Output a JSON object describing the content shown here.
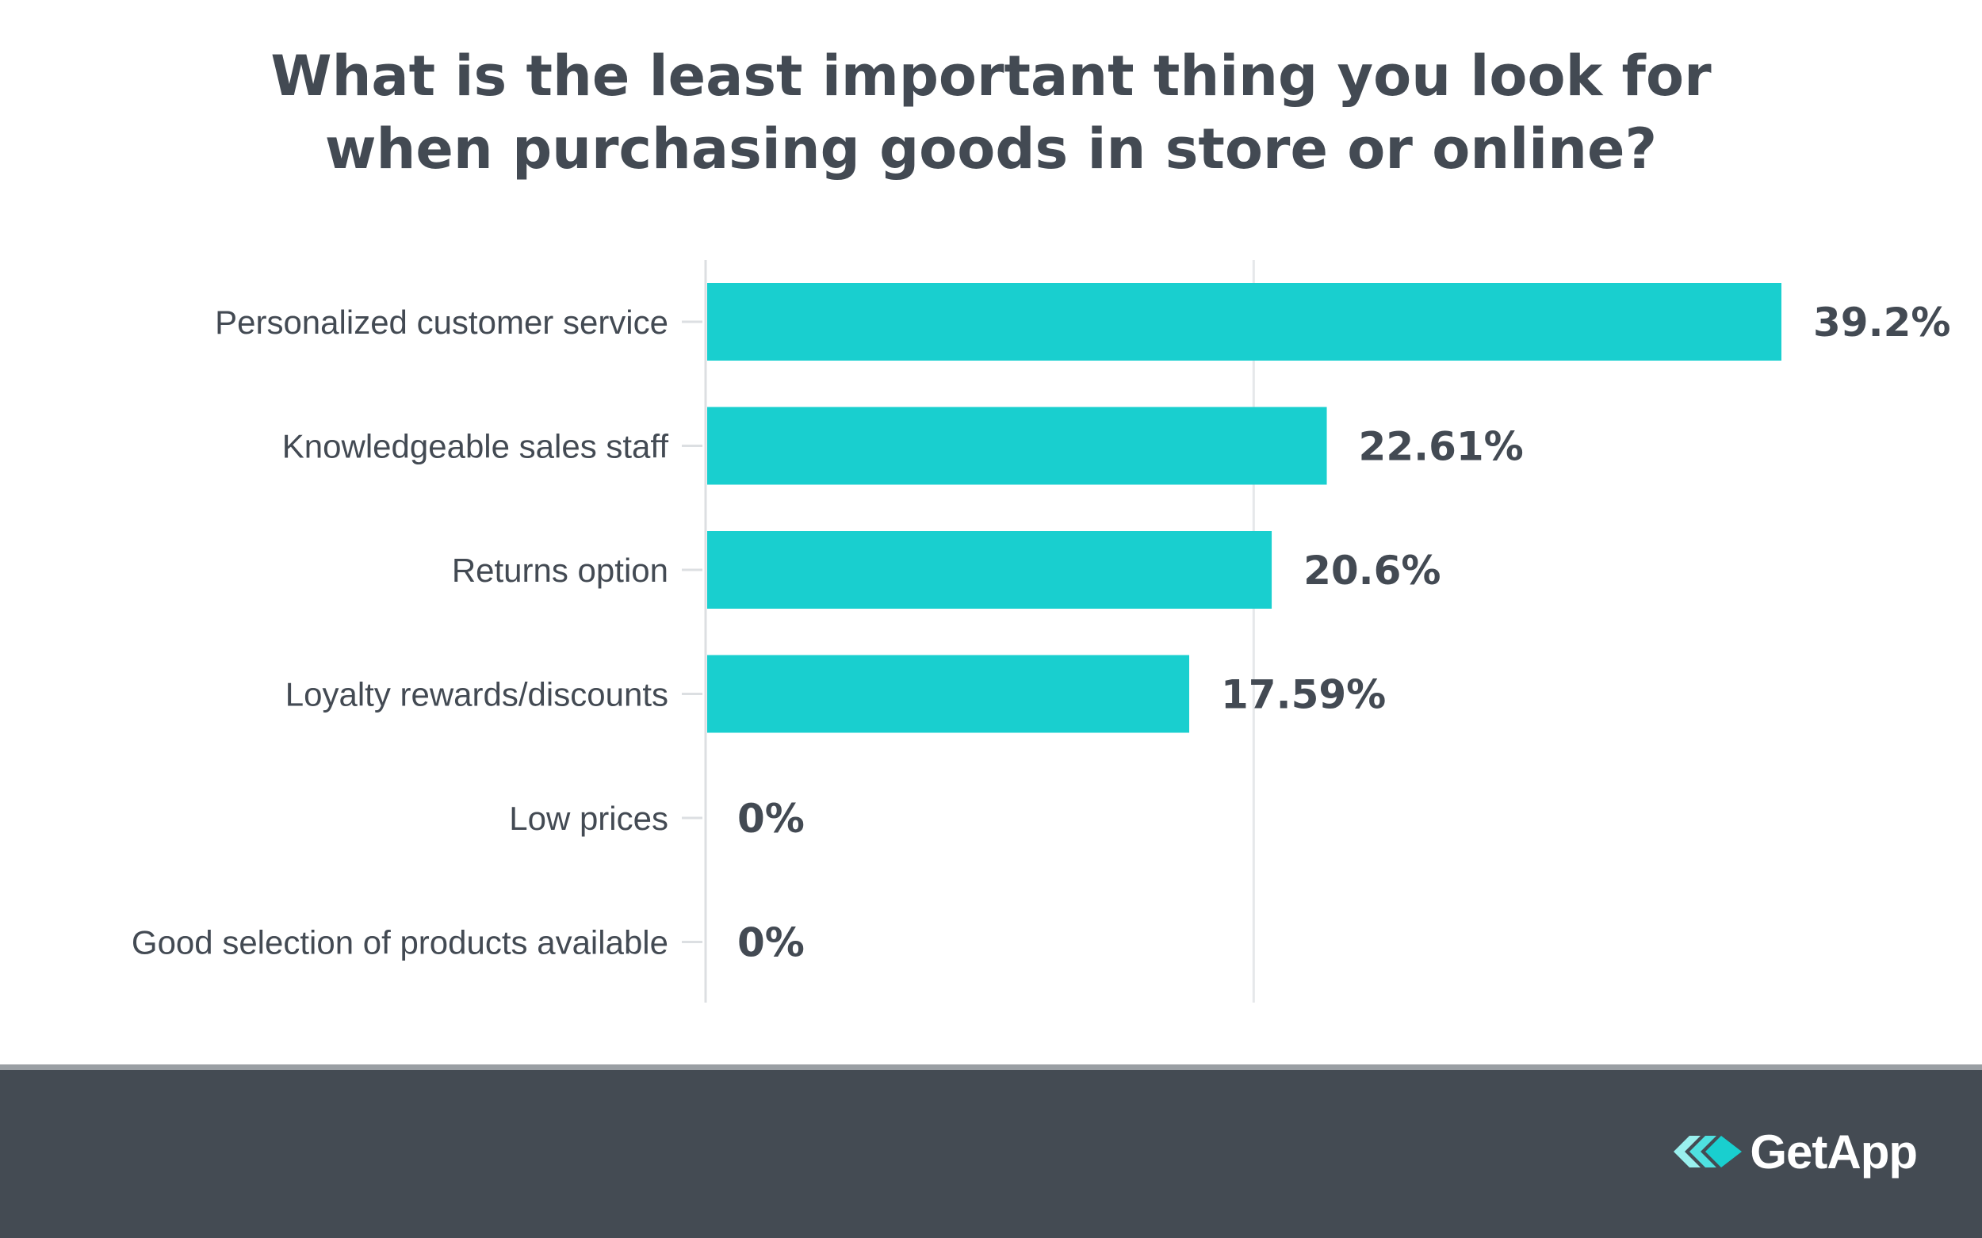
{
  "chart_data": {
    "type": "bar",
    "orientation": "horizontal",
    "title_lines": [
      "What is the least important thing you look for",
      "when purchasing goods in store or online?"
    ],
    "categories": [
      "Personalized customer service",
      "Knowledgeable sales staff",
      "Returns option",
      "Loyalty rewards/discounts",
      "Low prices",
      "Good selection of products available"
    ],
    "values": [
      39.2,
      22.61,
      20.6,
      17.59,
      0,
      0
    ],
    "value_labels": [
      "39.2%",
      "22.61%",
      "20.6%",
      "17.59%",
      "0%",
      "0%"
    ],
    "xlim": [
      0,
      40
    ],
    "gridlines": [
      0,
      20
    ],
    "xlabel": "",
    "ylabel": "",
    "colors": {
      "bar": "#19cfcf",
      "text": "#434a53",
      "grid": "#e6e8ea"
    }
  },
  "footer": {
    "brand": "GetApp",
    "background": "#444b53"
  }
}
